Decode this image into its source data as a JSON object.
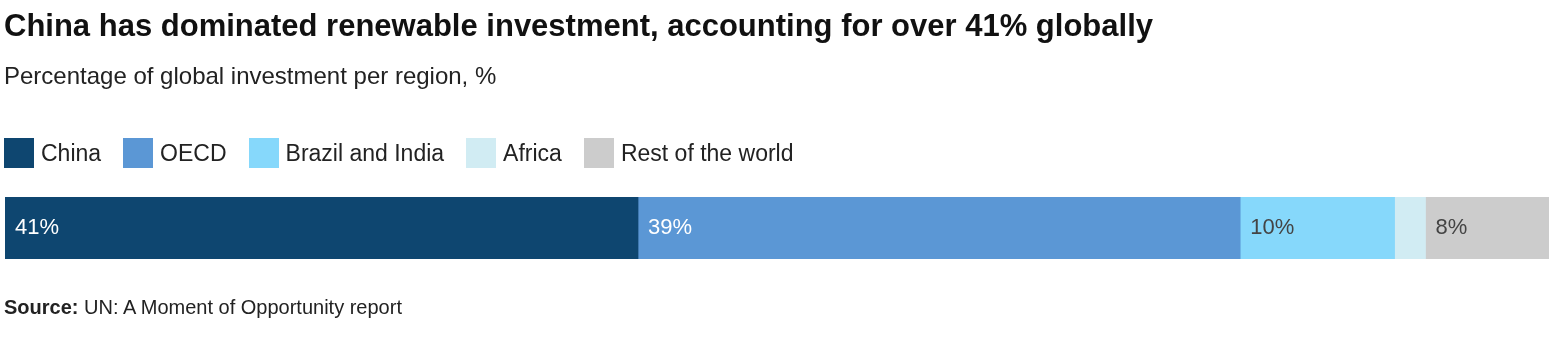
{
  "chart_data": {
    "type": "bar",
    "orientation": "horizontal",
    "stacked": true,
    "title": "China has dominated renewable investment, accounting for over 41% globally",
    "subtitle": "Percentage of global investment per region, %",
    "categories": [
      null
    ],
    "xlim": [
      0,
      100
    ],
    "tick_labels": false,
    "legend": "top left",
    "series": [
      {
        "name": "China",
        "color": "#0e4670",
        "values": [
          41
        ],
        "value_labels": [
          "41%"
        ]
      },
      {
        "name": "OECD",
        "color": "#5b97d5",
        "values": [
          39
        ],
        "value_labels": [
          "39%"
        ]
      },
      {
        "name": "Brazil and India",
        "color": "#86d8fb",
        "values": [
          10
        ],
        "value_labels": [
          "10%"
        ]
      },
      {
        "name": "Africa",
        "color": "#d1ecf3",
        "values": [
          2
        ],
        "value_labels": [
          null
        ]
      },
      {
        "name": "Rest of the world",
        "color": "#cccccc",
        "values": [
          8
        ],
        "value_labels": [
          "8%"
        ]
      }
    ],
    "annotations": [
      "Source: UN: A Moment of Opportunity report"
    ]
  }
}
